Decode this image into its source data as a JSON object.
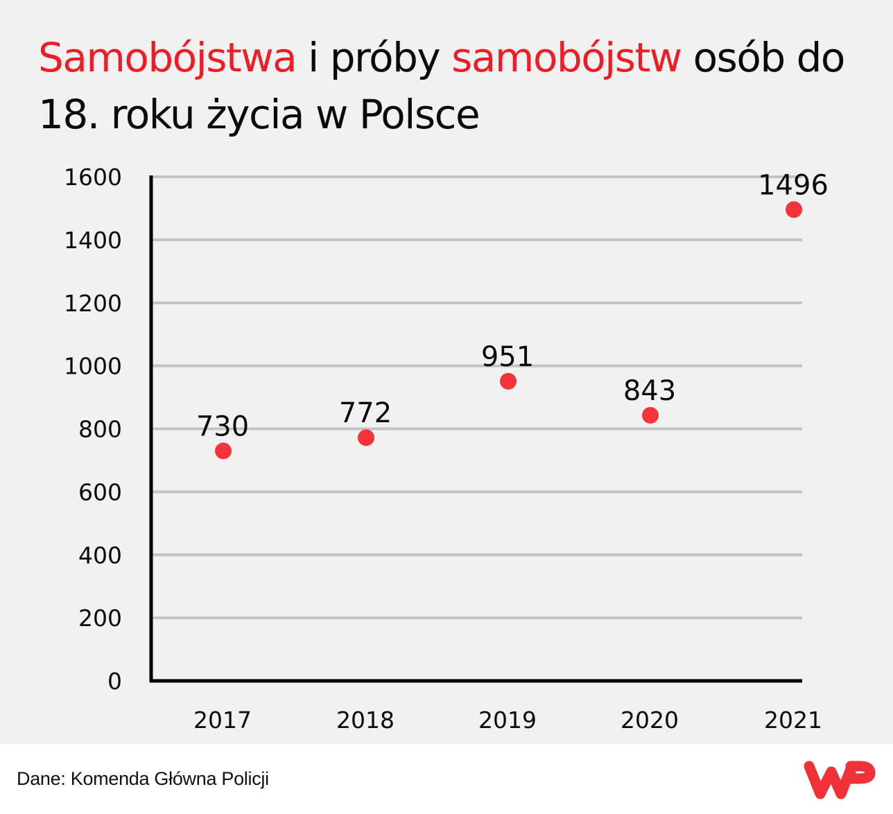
{
  "title": {
    "parts": [
      {
        "text": "Samobójstwa",
        "highlight": true
      },
      {
        "text": " i próby ",
        "highlight": false
      },
      {
        "text": "samobójstw",
        "highlight": true
      },
      {
        "text": " osób do 18. roku życia w Polsce",
        "highlight": false
      }
    ]
  },
  "footer": {
    "source": "Dane: Komenda Główna Policji",
    "logo": "WP"
  },
  "colors": {
    "highlight": "#ee1c25",
    "marker": "#f4333a",
    "text": "#0a0a0a",
    "gridline": "#c3c3c3",
    "axis": "#000000",
    "panel_bg": "#f1f1f1",
    "footer_bg": "#ffffff",
    "logo": "#f03137"
  },
  "chart_data": {
    "type": "scatter",
    "title": "Samobójstwa i próby samobójstw osób do 18. roku życia w Polsce",
    "xlabel": "",
    "ylabel": "",
    "categories": [
      "2017",
      "2018",
      "2019",
      "2020",
      "2021"
    ],
    "values": [
      730,
      772,
      951,
      843,
      1496
    ],
    "data_labels": [
      "730",
      "772",
      "951",
      "843",
      "1496"
    ],
    "yticks": [
      0,
      200,
      400,
      600,
      800,
      1000,
      1200,
      1400,
      1600
    ],
    "ylim": [
      0,
      1600
    ],
    "grid": true,
    "legend": null,
    "source": "Dane: Komenda Główna Policji"
  }
}
